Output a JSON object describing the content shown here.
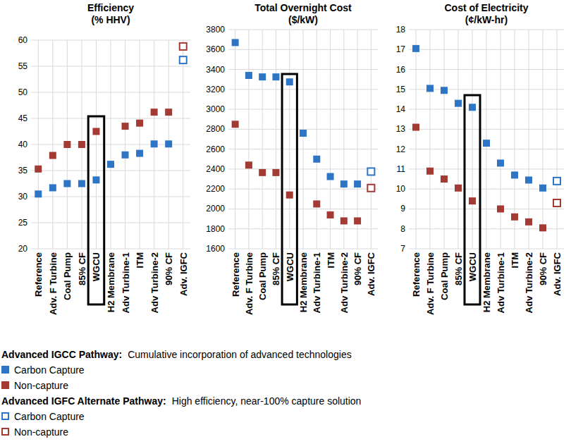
{
  "chart_data": [
    {
      "type": "scatter",
      "title": "Efficiency",
      "subtitle": "(% HHV)",
      "categories": [
        "Reference",
        "Adv. F Turbine",
        "Coal Pump",
        "85% CF",
        "WGCU",
        "H2 Membrane",
        "Adv Turbine-1",
        "ITM",
        "Adv Turbine-2",
        "90% CF",
        "Adv. IGFC"
      ],
      "series": [
        {
          "name": "Carbon Capture",
          "color": "#2e75c5",
          "marker": "square",
          "values": [
            30.5,
            31.7,
            32.5,
            32.5,
            33.2,
            36.2,
            38,
            38.3,
            40.1,
            40.1,
            null
          ]
        },
        {
          "name": "Non-capture",
          "color": "#a33a33",
          "marker": "square",
          "values": [
            35.3,
            37.9,
            40,
            40,
            42.5,
            null,
            43.5,
            44.1,
            46.2,
            46.2,
            null
          ]
        },
        {
          "name": "Carbon Capture",
          "color": "#2e75c5",
          "marker": "hollow-square",
          "values": [
            null,
            null,
            null,
            null,
            null,
            null,
            null,
            null,
            null,
            null,
            56.2
          ]
        },
        {
          "name": "Non-capture",
          "color": "#a33a33",
          "marker": "hollow-square",
          "values": [
            null,
            null,
            null,
            null,
            null,
            null,
            null,
            null,
            null,
            null,
            58.8
          ]
        }
      ],
      "ylim": [
        20,
        60
      ],
      "yticks": [
        20,
        25,
        30,
        35,
        40,
        45,
        50,
        55,
        60
      ],
      "grid": true
    },
    {
      "type": "scatter",
      "title": "Total Overnight Cost",
      "subtitle": "($/kW)",
      "categories": [
        "Reference",
        "Adv. F Turbine",
        "Coal Pump",
        "85% CF",
        "WGCU",
        "H2 Membrane",
        "Adv Turbine-1",
        "ITM",
        "Adv Turbine-2",
        "90% CF",
        "Adv. IGFC"
      ],
      "series": [
        {
          "color": "#2e75c5",
          "marker": "square",
          "values": [
            3670,
            3340,
            3325,
            3325,
            3275,
            2760,
            2500,
            2325,
            2250,
            2250,
            null
          ]
        },
        {
          "color": "#a33a33",
          "marker": "square",
          "values": [
            2850,
            2440,
            2365,
            2365,
            2140,
            null,
            2050,
            1940,
            1880,
            1880,
            null
          ]
        },
        {
          "color": "#2e75c5",
          "marker": "hollow-square",
          "values": [
            null,
            null,
            null,
            null,
            null,
            null,
            null,
            null,
            null,
            null,
            2375
          ]
        },
        {
          "color": "#a33a33",
          "marker": "hollow-square",
          "values": [
            null,
            null,
            null,
            null,
            null,
            null,
            null,
            null,
            null,
            null,
            2210
          ]
        }
      ],
      "ylim": [
        1600,
        3800
      ],
      "yticks": [
        1600,
        1800,
        2000,
        2200,
        2400,
        2600,
        2800,
        3000,
        3200,
        3400,
        3600,
        3800
      ],
      "grid": true
    },
    {
      "type": "scatter",
      "title": "Cost of Electricity",
      "subtitle": "(¢/kW-hr)",
      "categories": [
        "Reference",
        "Adv. F Turbine",
        "Coal Pump",
        "85% CF",
        "WGCU",
        "H2 Membrane",
        "Adv Turbine-1",
        "ITM",
        "Adv Turbine-2",
        "90% CF",
        "Adv. IGFC"
      ],
      "series": [
        {
          "color": "#2e75c5",
          "marker": "square",
          "values": [
            17.05,
            15.05,
            14.95,
            14.3,
            14.1,
            12.3,
            11.3,
            10.7,
            10.45,
            10.05,
            null
          ]
        },
        {
          "color": "#a33a33",
          "marker": "square",
          "values": [
            13.1,
            10.9,
            10.5,
            10.05,
            9.4,
            null,
            9.0,
            8.6,
            8.35,
            8.05,
            null
          ]
        },
        {
          "color": "#2e75c5",
          "marker": "hollow-square",
          "values": [
            null,
            null,
            null,
            null,
            null,
            null,
            null,
            null,
            null,
            null,
            10.4
          ]
        },
        {
          "color": "#a33a33",
          "marker": "hollow-square",
          "values": [
            null,
            null,
            null,
            null,
            null,
            null,
            null,
            null,
            null,
            null,
            9.3
          ]
        }
      ],
      "ylim": [
        7,
        18
      ],
      "yticks": [
        7,
        8,
        9,
        10,
        11,
        12,
        13,
        14,
        15,
        16,
        17,
        18
      ],
      "grid": true
    }
  ],
  "legend_groups": [
    {
      "title": "Advanced IGCC Pathway:",
      "text": "Cumulative incorporation of advanced technologies"
    },
    {
      "title": "Advanced IGFC Alternate Pathway:",
      "text": "High efficiency, near-100% capture solution"
    }
  ]
}
